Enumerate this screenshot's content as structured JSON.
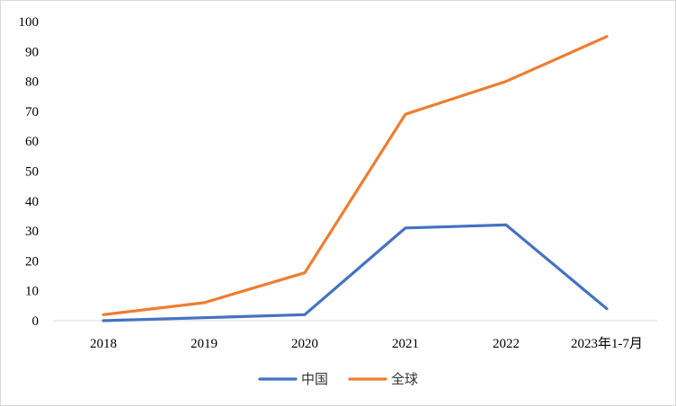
{
  "chart_data": {
    "type": "line",
    "categories": [
      "2018",
      "2019",
      "2020",
      "2021",
      "2022",
      "2023年1-7月"
    ],
    "series": [
      {
        "name": "中国",
        "color": "#4472c4",
        "values": [
          0,
          1,
          2,
          31,
          32,
          4
        ]
      },
      {
        "name": "全球",
        "color": "#ed7d31",
        "values": [
          2,
          6,
          16,
          69,
          80,
          95
        ]
      }
    ],
    "ylim": [
      0,
      100
    ],
    "yticks": [
      "0",
      "10",
      "20",
      "30",
      "40",
      "50",
      "60",
      "70",
      "80",
      "90",
      "100"
    ],
    "grid": false,
    "legend": "bottom",
    "axis_color": "#d9d9d9"
  }
}
